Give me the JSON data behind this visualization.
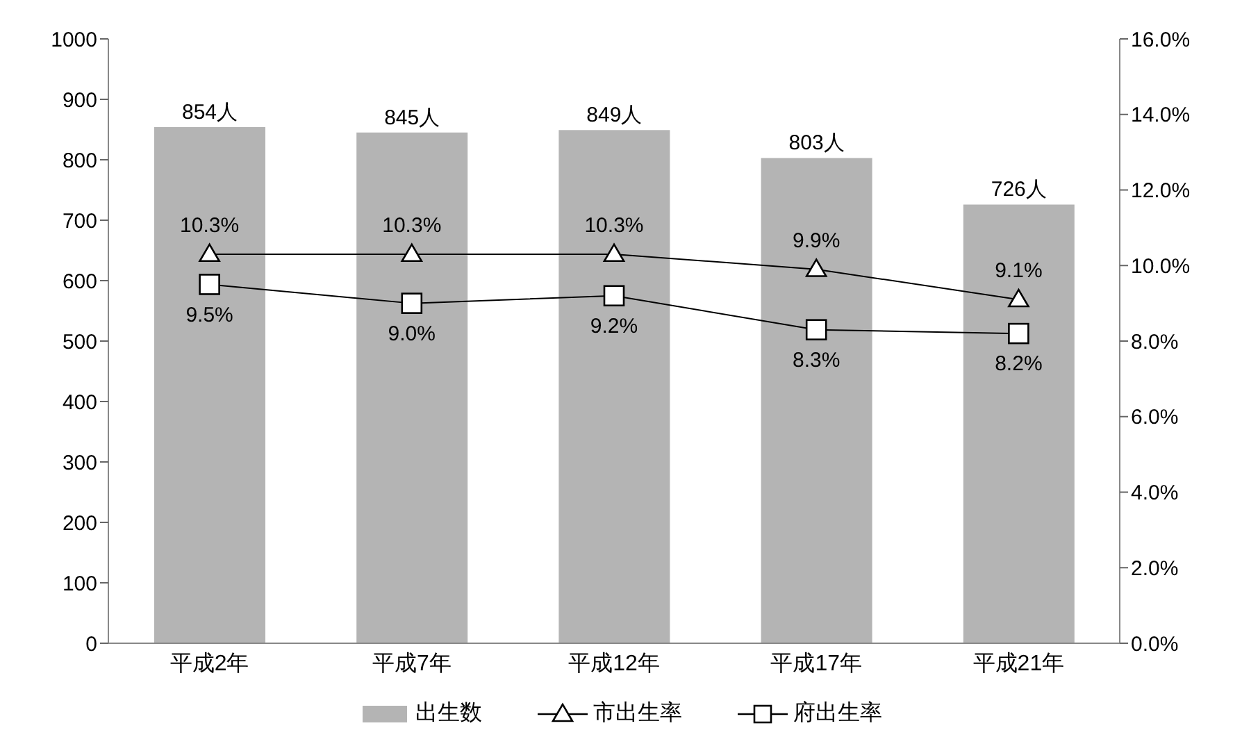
{
  "chart_data": {
    "type": "bar",
    "categories": [
      "平成2年",
      "平成7年",
      "平成12年",
      "平成17年",
      "平成21年"
    ],
    "series": [
      {
        "name": "出生数",
        "color": "#b4b4b4",
        "values": [
          854,
          845,
          849,
          803,
          726
        ],
        "value_labels": [
          "854人",
          "845人",
          "849人",
          "803人",
          "726人"
        ]
      },
      {
        "name": "市出生率",
        "type": "line",
        "axis": "y2",
        "color": "#000000",
        "marker": "triangle",
        "values": [
          10.3,
          10.3,
          10.3,
          9.9,
          9.1
        ],
        "value_labels": [
          "10.3%",
          "10.3%",
          "10.3%",
          "9.9%",
          "9.1%"
        ]
      },
      {
        "name": "府出生率",
        "type": "line",
        "axis": "y2",
        "color": "#000000",
        "marker": "square",
        "values": [
          9.5,
          9.0,
          9.2,
          8.3,
          8.2
        ],
        "value_labels": [
          "9.5%",
          "9.0%",
          "9.2%",
          "8.3%",
          "8.2%"
        ]
      }
    ],
    "ylim": [
      0,
      1000
    ],
    "yticks": [
      0,
      100,
      200,
      300,
      400,
      500,
      600,
      700,
      800,
      900,
      1000
    ],
    "y2lim": [
      0,
      16
    ],
    "y2ticks": [
      {
        "value": 0,
        "label": "0.0%"
      },
      {
        "value": 2,
        "label": "2.0%"
      },
      {
        "value": 4,
        "label": "4.0%"
      },
      {
        "value": 6,
        "label": "6.0%"
      },
      {
        "value": 8,
        "label": "8.0%"
      },
      {
        "value": 10,
        "label": "10.0%"
      },
      {
        "value": 12,
        "label": "12.0%"
      },
      {
        "value": 14,
        "label": "14.0%"
      },
      {
        "value": 16,
        "label": "16.0%"
      }
    ],
    "grid": false,
    "legend": "bottom"
  }
}
